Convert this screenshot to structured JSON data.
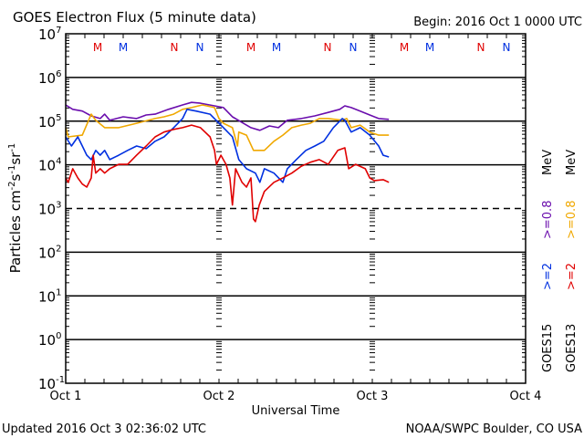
{
  "header": {
    "title": "GOES Electron Flux (5 minute data)",
    "begin": "Begin: 2016 Oct 1 0000 UTC"
  },
  "footer": {
    "updated": "Updated 2016 Oct  3 02:36:02 UTC",
    "credit": "NOAA/SWPC Boulder, CO USA"
  },
  "chart_data": {
    "type": "line",
    "title": "GOES Electron Flux (5 minute data)",
    "xlabel": "Universal Time",
    "ylabel": "Particles cm-2s-1sr-1",
    "ylabel_parts": {
      "base": "Particles cm",
      "e1": "-2",
      "m1": "s",
      "e2": "-1",
      "m2": "sr",
      "e3": "-1"
    },
    "yscale": "log",
    "ylim_log10": [
      -1,
      7
    ],
    "y_ticks": [
      {
        "base": "10",
        "exp": "7",
        "value": 7
      },
      {
        "base": "10",
        "exp": "6",
        "value": 6
      },
      {
        "base": "10",
        "exp": "5",
        "value": 5
      },
      {
        "base": "10",
        "exp": "4",
        "value": 4
      },
      {
        "base": "10",
        "exp": "3",
        "value": 3
      },
      {
        "base": "10",
        "exp": "2",
        "value": 2
      },
      {
        "base": "10",
        "exp": "1",
        "value": 1
      },
      {
        "base": "10",
        "exp": "0",
        "value": 0
      },
      {
        "base": "10",
        "exp": "-1",
        "value": -1
      }
    ],
    "xlim_hours": [
      0,
      72
    ],
    "x_ticks": [
      {
        "label": "Oct 1",
        "hour": 0
      },
      {
        "label": "Oct 2",
        "hour": 24
      },
      {
        "label": "Oct 3",
        "hour": 48
      },
      {
        "label": "Oct 4",
        "hour": 72
      }
    ],
    "solid_gridlines_log10": [
      6,
      5,
      4,
      2,
      1,
      0
    ],
    "dashed_threshold_log10": 3,
    "markers": [
      {
        "label": "M",
        "hour": 5,
        "color": "#e00000"
      },
      {
        "label": "M",
        "hour": 9,
        "color": "#0030e0"
      },
      {
        "label": "N",
        "hour": 17,
        "color": "#e00000"
      },
      {
        "label": "N",
        "hour": 21,
        "color": "#0030e0"
      },
      {
        "label": "M",
        "hour": 29,
        "color": "#e00000"
      },
      {
        "label": "M",
        "hour": 33,
        "color": "#0030e0"
      },
      {
        "label": "N",
        "hour": 41,
        "color": "#e00000"
      },
      {
        "label": "N",
        "hour": 45,
        "color": "#0030e0"
      },
      {
        "label": "M",
        "hour": 53,
        "color": "#e00000"
      },
      {
        "label": "M",
        "hour": 57,
        "color": "#0030e0"
      },
      {
        "label": "N",
        "hour": 65,
        "color": "#e00000"
      },
      {
        "label": "N",
        "hour": 69,
        "color": "#0030e0"
      }
    ],
    "legend": {
      "placement": "right",
      "columns": [
        {
          "satellite": "GOES15",
          "low": ">=2",
          "low_color": "#0030e0",
          "high": ">=0.8",
          "high_color": "#6a0dad",
          "unit": "MeV"
        },
        {
          "satellite": "GOES13",
          "low": ">=2",
          "low_color": "#e00000",
          "high": ">=0.8",
          "high_color": "#f0a800",
          "unit": "MeV"
        }
      ]
    },
    "series": [
      {
        "name": "GOES15 >=0.8 MeV",
        "color": "#6a0dad",
        "points_hour_log10": [
          [
            0,
            5.37
          ],
          [
            1.1,
            5.27
          ],
          [
            2.6,
            5.23
          ],
          [
            4,
            5.12
          ],
          [
            5.4,
            5.06
          ],
          [
            6.1,
            5.16
          ],
          [
            6.9,
            5.02
          ],
          [
            9,
            5.1
          ],
          [
            11.1,
            5.06
          ],
          [
            12.6,
            5.14
          ],
          [
            14,
            5.16
          ],
          [
            16.1,
            5.27
          ],
          [
            18.3,
            5.37
          ],
          [
            19.7,
            5.43
          ],
          [
            21.1,
            5.41
          ],
          [
            23.3,
            5.35
          ],
          [
            24.7,
            5.31
          ],
          [
            26.1,
            5.1
          ],
          [
            27.6,
            4.97
          ],
          [
            29,
            4.85
          ],
          [
            30.4,
            4.79
          ],
          [
            31.9,
            4.89
          ],
          [
            33.3,
            4.85
          ],
          [
            34.7,
            5.02
          ],
          [
            36.9,
            5.06
          ],
          [
            39,
            5.12
          ],
          [
            41.1,
            5.2
          ],
          [
            42.9,
            5.27
          ],
          [
            43.7,
            5.35
          ],
          [
            44.7,
            5.31
          ],
          [
            46.1,
            5.23
          ],
          [
            47.6,
            5.14
          ],
          [
            49,
            5.06
          ],
          [
            50.6,
            5.04
          ]
        ]
      },
      {
        "name": "GOES13 >=0.8 MeV",
        "color": "#f0a800",
        "points_hour_log10": [
          [
            0,
            4.85
          ],
          [
            0.4,
            4.64
          ],
          [
            2.6,
            4.68
          ],
          [
            4,
            5.16
          ],
          [
            4.7,
            5.02
          ],
          [
            6.1,
            4.85
          ],
          [
            8.3,
            4.85
          ],
          [
            11.1,
            4.95
          ],
          [
            14,
            5.06
          ],
          [
            15.4,
            5.1
          ],
          [
            16.9,
            5.16
          ],
          [
            18.3,
            5.27
          ],
          [
            19.7,
            5.31
          ],
          [
            21.4,
            5.37
          ],
          [
            23.3,
            5.31
          ],
          [
            24,
            5.06
          ],
          [
            24.7,
            4.95
          ],
          [
            26.1,
            4.85
          ],
          [
            26.9,
            4.43
          ],
          [
            27.1,
            4.75
          ],
          [
            28.3,
            4.68
          ],
          [
            29.4,
            4.33
          ],
          [
            31.1,
            4.33
          ],
          [
            32.6,
            4.54
          ],
          [
            34,
            4.68
          ],
          [
            35.4,
            4.85
          ],
          [
            36.9,
            4.91
          ],
          [
            38.3,
            4.95
          ],
          [
            39.7,
            5.06
          ],
          [
            41.1,
            5.06
          ],
          [
            43.3,
            5.02
          ],
          [
            44,
            5.06
          ],
          [
            44.7,
            4.85
          ],
          [
            46.1,
            4.91
          ],
          [
            47.6,
            4.75
          ],
          [
            49,
            4.68
          ],
          [
            50.6,
            4.68
          ]
        ]
      },
      {
        "name": "GOES15 >=2 MeV",
        "color": "#0030e0",
        "points_hour_log10": [
          [
            0,
            4.64
          ],
          [
            0.9,
            4.43
          ],
          [
            1.9,
            4.64
          ],
          [
            2.6,
            4.43
          ],
          [
            3.3,
            4.22
          ],
          [
            4,
            4.12
          ],
          [
            4.7,
            4.33
          ],
          [
            5.4,
            4.22
          ],
          [
            6.1,
            4.33
          ],
          [
            6.9,
            4.12
          ],
          [
            8.3,
            4.22
          ],
          [
            9.7,
            4.33
          ],
          [
            11.1,
            4.43
          ],
          [
            12.6,
            4.37
          ],
          [
            14,
            4.54
          ],
          [
            15.4,
            4.64
          ],
          [
            16.9,
            4.85
          ],
          [
            18.3,
            5.06
          ],
          [
            19,
            5.27
          ],
          [
            20.4,
            5.23
          ],
          [
            22.6,
            5.16
          ],
          [
            24,
            4.95
          ],
          [
            24.7,
            4.85
          ],
          [
            26.1,
            4.64
          ],
          [
            27.1,
            4.12
          ],
          [
            28.3,
            3.91
          ],
          [
            29.7,
            3.81
          ],
          [
            30.4,
            3.6
          ],
          [
            31.1,
            3.91
          ],
          [
            32.6,
            3.81
          ],
          [
            34,
            3.6
          ],
          [
            34.7,
            3.91
          ],
          [
            36.1,
            4.12
          ],
          [
            37.6,
            4.33
          ],
          [
            39,
            4.43
          ],
          [
            40.4,
            4.54
          ],
          [
            41.9,
            4.85
          ],
          [
            43.3,
            5.06
          ],
          [
            43.7,
            5.02
          ],
          [
            44.7,
            4.75
          ],
          [
            46.1,
            4.85
          ],
          [
            47.6,
            4.68
          ],
          [
            49,
            4.43
          ],
          [
            49.7,
            4.22
          ],
          [
            50.6,
            4.18
          ]
        ]
      },
      {
        "name": "GOES13 >=2 MeV",
        "color": "#e00000",
        "points_hour_log10": [
          [
            0,
            3.7
          ],
          [
            0.4,
            3.6
          ],
          [
            1.1,
            3.91
          ],
          [
            1.9,
            3.7
          ],
          [
            2.6,
            3.56
          ],
          [
            3.3,
            3.49
          ],
          [
            4,
            3.7
          ],
          [
            4.3,
            4.22
          ],
          [
            4.7,
            3.81
          ],
          [
            5.4,
            3.91
          ],
          [
            6.1,
            3.81
          ],
          [
            6.9,
            3.91
          ],
          [
            8.3,
            4.01
          ],
          [
            9.7,
            4.01
          ],
          [
            11.1,
            4.22
          ],
          [
            12.6,
            4.43
          ],
          [
            14,
            4.64
          ],
          [
            15.4,
            4.75
          ],
          [
            16.9,
            4.81
          ],
          [
            18.3,
            4.85
          ],
          [
            19.7,
            4.91
          ],
          [
            21.1,
            4.85
          ],
          [
            22.6,
            4.64
          ],
          [
            23.3,
            4.33
          ],
          [
            23.6,
            4.01
          ],
          [
            24.3,
            4.22
          ],
          [
            25.1,
            4.01
          ],
          [
            25.7,
            3.7
          ],
          [
            26.1,
            3.08
          ],
          [
            26.6,
            3.91
          ],
          [
            27.6,
            3.6
          ],
          [
            28.3,
            3.49
          ],
          [
            29,
            3.7
          ],
          [
            29.4,
            2.76
          ],
          [
            29.7,
            2.7
          ],
          [
            30.3,
            3.08
          ],
          [
            31.1,
            3.39
          ],
          [
            32.6,
            3.6
          ],
          [
            34,
            3.7
          ],
          [
            35.4,
            3.81
          ],
          [
            36.9,
            3.97
          ],
          [
            38.3,
            4.06
          ],
          [
            39.7,
            4.12
          ],
          [
            41.1,
            4.01
          ],
          [
            42.6,
            4.33
          ],
          [
            43.7,
            4.39
          ],
          [
            44.3,
            3.91
          ],
          [
            45.4,
            4.01
          ],
          [
            46.9,
            3.91
          ],
          [
            47.6,
            3.7
          ],
          [
            48.3,
            3.64
          ],
          [
            49.7,
            3.66
          ],
          [
            50.6,
            3.6
          ]
        ]
      }
    ]
  }
}
